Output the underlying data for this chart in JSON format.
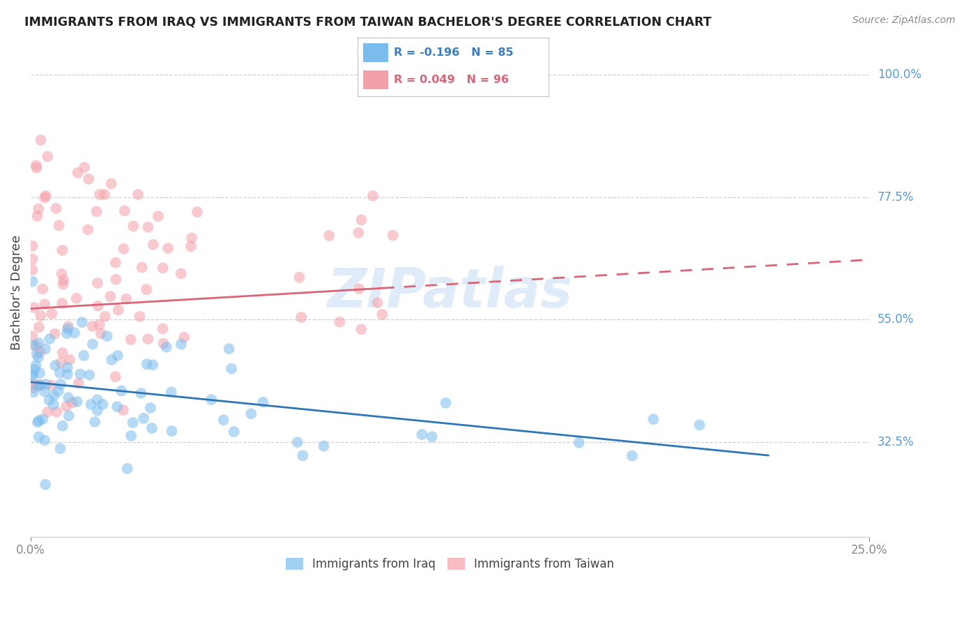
{
  "title": "IMMIGRANTS FROM IRAQ VS IMMIGRANTS FROM TAIWAN BACHELOR'S DEGREE CORRELATION CHART",
  "source": "Source: ZipAtlas.com",
  "ylabel": "Bachelor's Degree",
  "right_ytick_vals": [
    100.0,
    77.5,
    55.0,
    32.5
  ],
  "xlim": [
    0.0,
    25.0
  ],
  "ylim": [
    15.0,
    105.0
  ],
  "iraq_R": -0.196,
  "iraq_N": 85,
  "taiwan_R": 0.049,
  "taiwan_N": 96,
  "blue_color": "#7bbcee",
  "pink_color": "#f4a0a8",
  "blue_line_color": "#2e75b6",
  "pink_line_color": "#d96475",
  "watermark": "ZIPatlas",
  "grid_color": "#d0d0d0",
  "bg_color": "#ffffff",
  "iraq_line_x0": 0.0,
  "iraq_line_y0": 43.5,
  "iraq_line_x1": 22.0,
  "iraq_line_y1": 30.0,
  "taiwan_line_x0": 0.0,
  "taiwan_line_y0": 57.0,
  "taiwan_line_solid_end": 10.5,
  "taiwan_line_x1": 25.0,
  "taiwan_line_y1": 66.0
}
